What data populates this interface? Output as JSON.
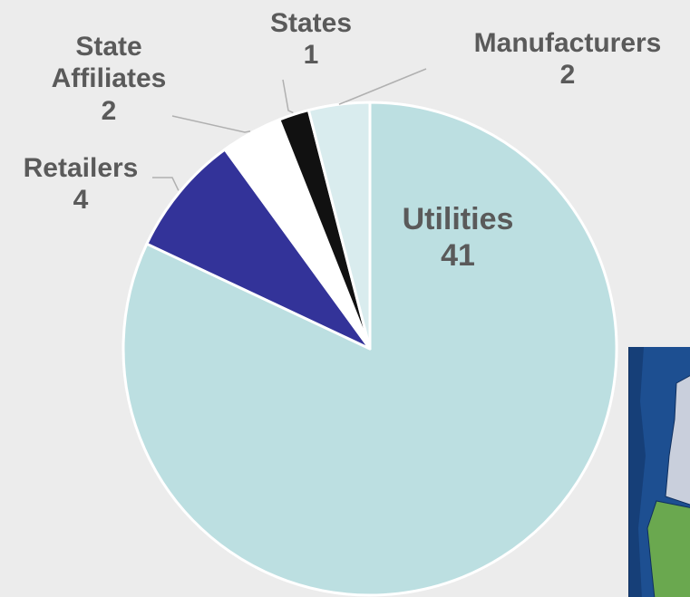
{
  "chart_data": {
    "type": "pie",
    "start_angle_deg": 0,
    "direction": "clockwise",
    "slices": [
      {
        "label": "Utilities",
        "value": 41,
        "color": "#bcdfe1"
      },
      {
        "label": "Retailers",
        "value": 4,
        "color": "#333399"
      },
      {
        "label": "State Affiliates",
        "value": 2,
        "color": "#ffffff"
      },
      {
        "label": "States",
        "value": 1,
        "color": "#111111"
      },
      {
        "label": "Manufacturers",
        "value": 2,
        "color": "#d9ecee"
      }
    ],
    "value_labels": [
      "41",
      "4",
      "2",
      "1",
      "2"
    ]
  },
  "labels": {
    "utilities": {
      "name": "Utilities",
      "value": "41"
    },
    "manufacturers": {
      "name": "Manufacturers",
      "value": "2"
    },
    "states": {
      "name": "States",
      "value": "1"
    },
    "affiliates": {
      "name_line1": "State",
      "name_line2": "Affiliates",
      "value": "2"
    },
    "retailers": {
      "name": "Retailers",
      "value": "4"
    }
  },
  "colors": {
    "label_text": "#5a5a5a",
    "background": "#ececec",
    "leader_line": "#b0b0b0",
    "map_water": "#1d4f91",
    "map_land_gray": "#c9cfdc",
    "map_land_green": "#6aa84f"
  }
}
